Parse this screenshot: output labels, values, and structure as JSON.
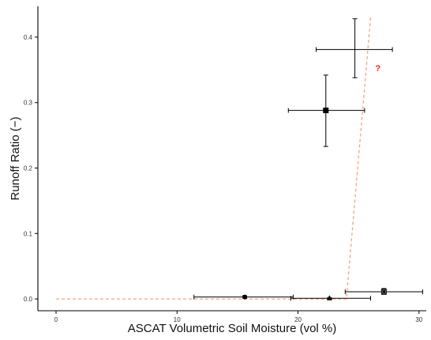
{
  "chart_data": {
    "type": "scatter",
    "title": "",
    "xlabel": "ASCAT Volumetric Soil Moisture (vol %)",
    "ylabel": "Runoff Ratio (−)",
    "xlim": [
      -1.5,
      30.6
    ],
    "ylim": [
      -0.018,
      0.447
    ],
    "x_ticks": [
      0,
      10,
      20,
      30
    ],
    "y_ticks": [
      0.0,
      0.1,
      0.2,
      0.3,
      0.4
    ],
    "x_tick_labels": [
      "0",
      "10",
      "20",
      "30"
    ],
    "y_tick_labels": [
      "0.0",
      "0.1",
      "0.2",
      "0.3",
      "0.4"
    ],
    "grid": false,
    "points": [
      {
        "x": 15.6,
        "y": 0.003,
        "x_err": [
          11.4,
          19.6
        ],
        "y_err": [
          0.001,
          0.005
        ],
        "marker": "circle"
      },
      {
        "x": 22.6,
        "y": 0.001,
        "x_err": [
          19.4,
          26.0
        ],
        "y_err": [
          0.0,
          0.002
        ],
        "marker": "triangle"
      },
      {
        "x": 27.1,
        "y": 0.011,
        "x_err": [
          23.9,
          30.3
        ],
        "y_err": [
          0.007,
          0.016
        ],
        "marker": "square-x"
      },
      {
        "x": 22.3,
        "y": 0.288,
        "x_err": [
          19.2,
          25.5
        ],
        "y_err": [
          0.233,
          0.342
        ],
        "marker": "square"
      },
      {
        "x": 24.7,
        "y": 0.381,
        "x_err": [
          21.5,
          27.8
        ],
        "y_err": [
          0.338,
          0.428
        ],
        "marker": "plus"
      }
    ],
    "fit_line": {
      "color": "#f4a582",
      "points": [
        [
          0,
          0.0
        ],
        [
          24.0,
          0.0
        ],
        [
          26.0,
          0.43
        ]
      ]
    },
    "annotation": {
      "text": "?",
      "x": 26.6,
      "y": 0.348,
      "color": "#e8231b"
    }
  }
}
